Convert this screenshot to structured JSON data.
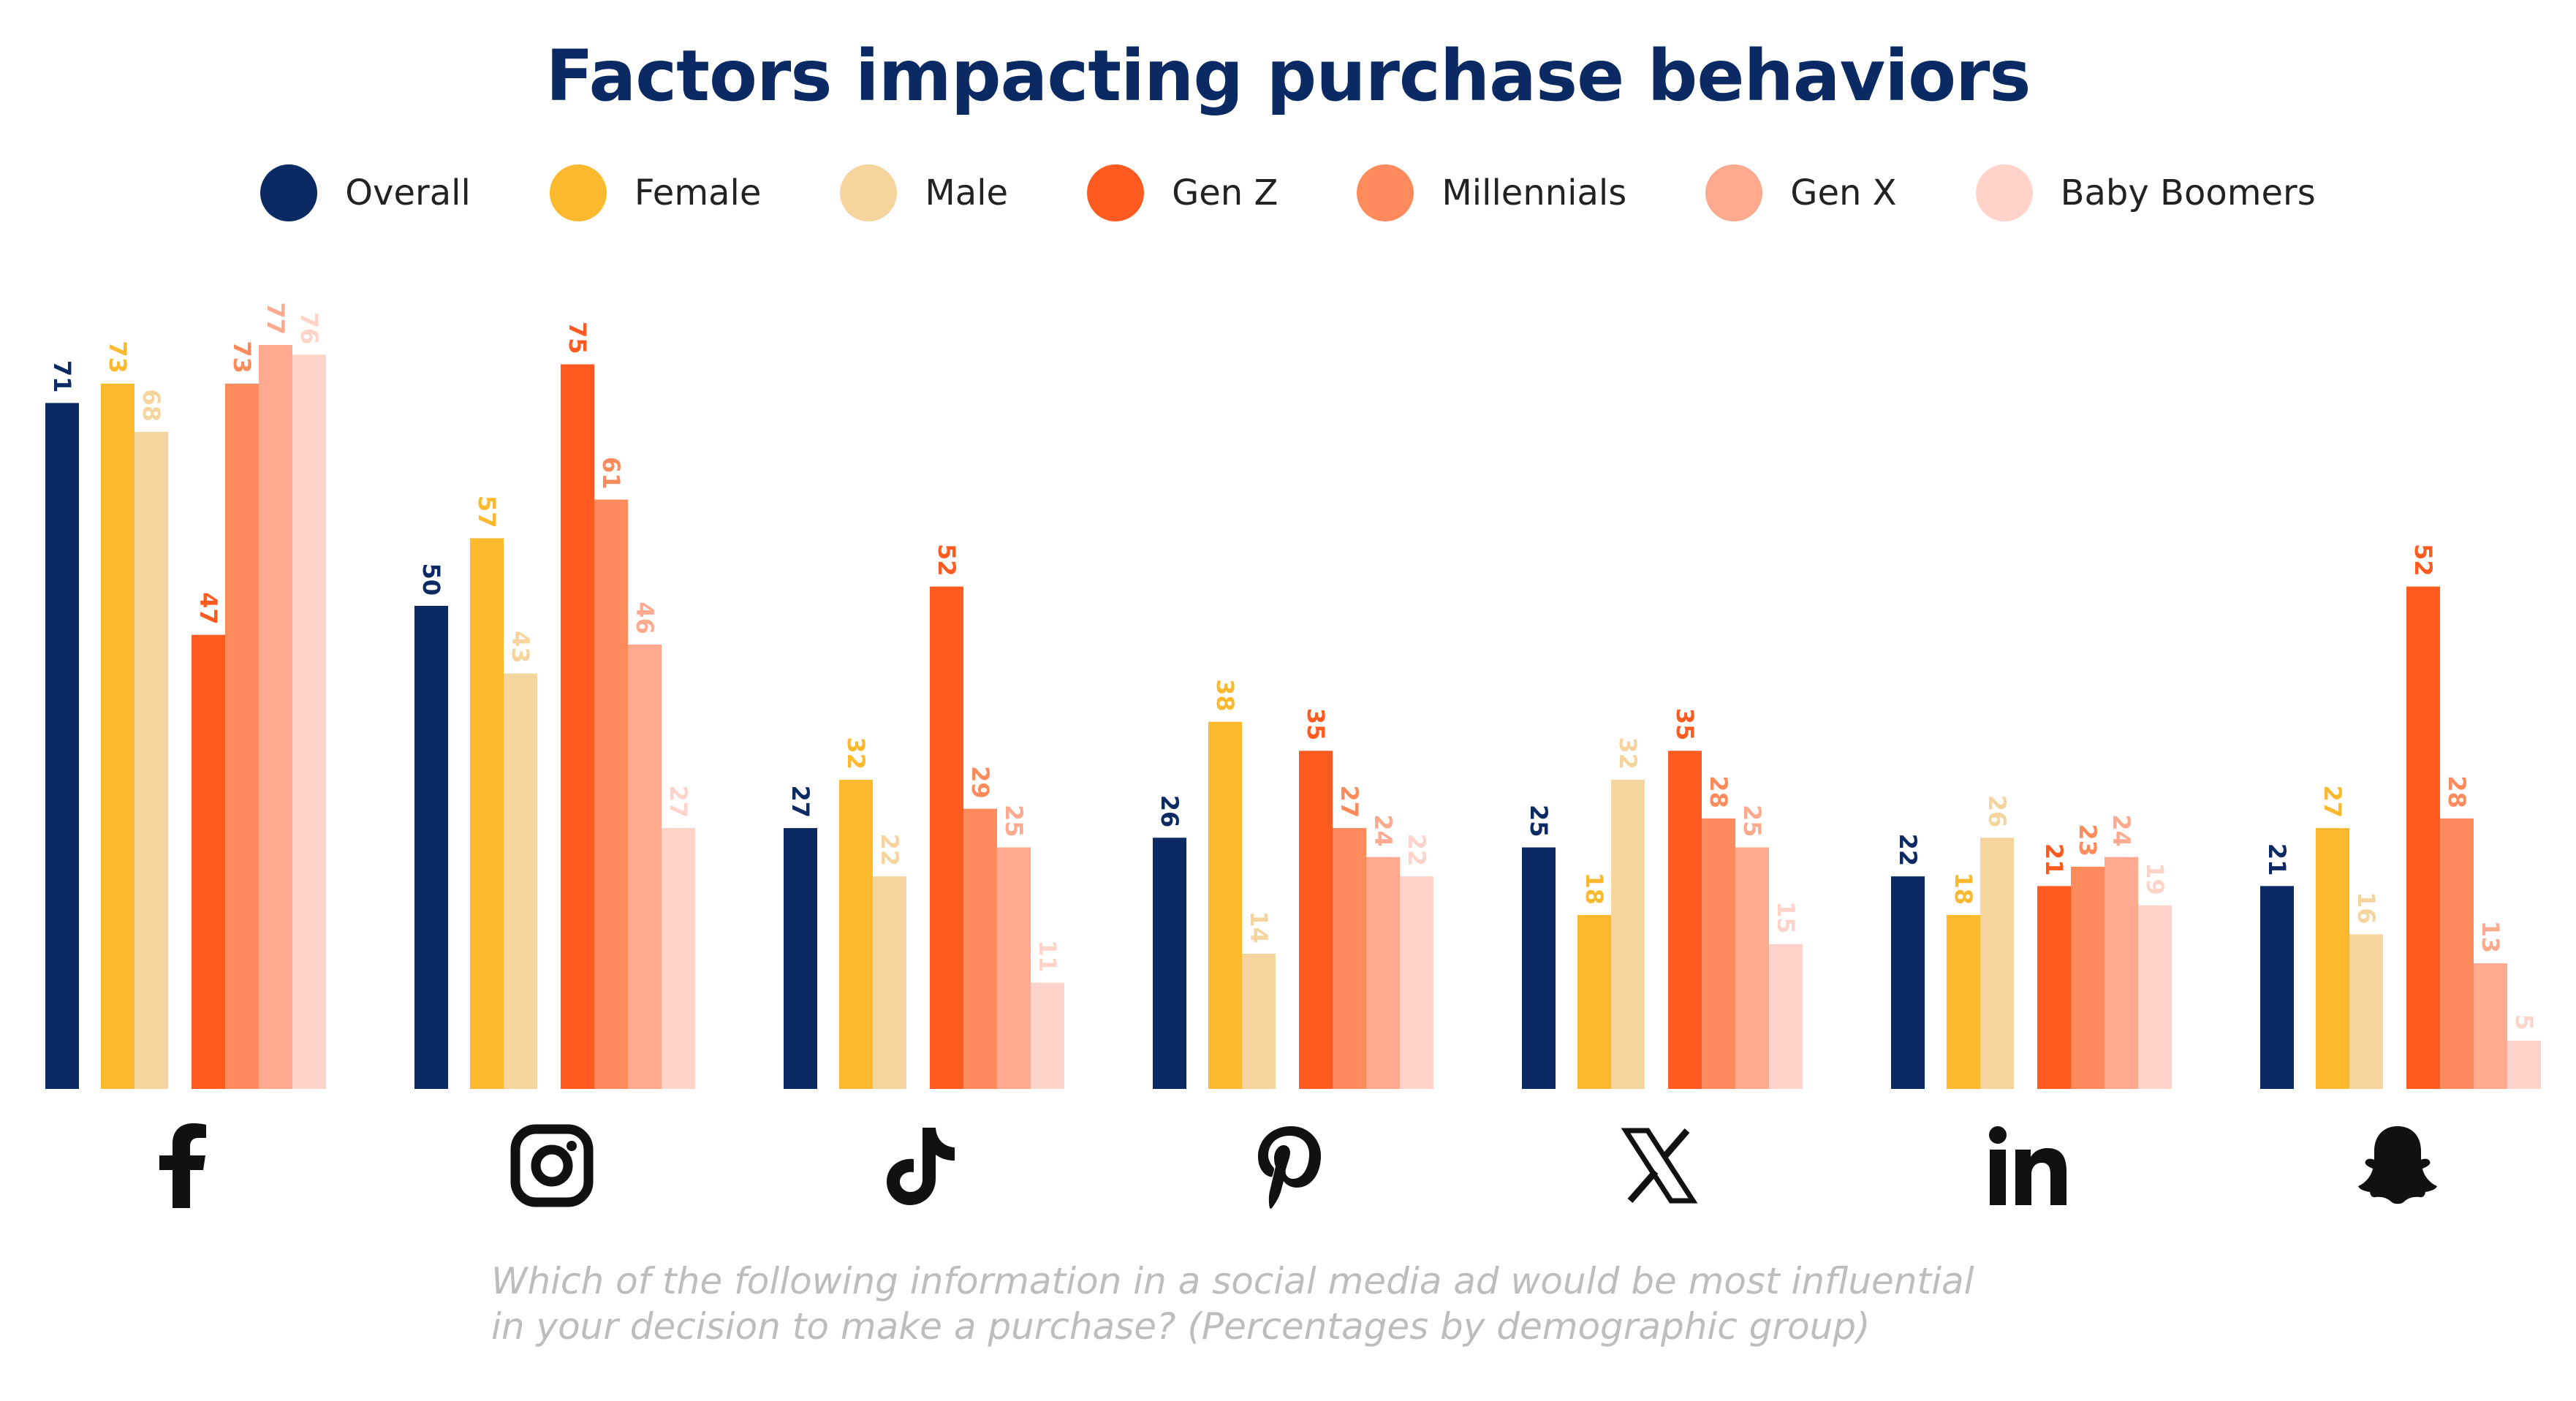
{
  "chart_data": {
    "type": "bar",
    "title": "Factors impacting purchase behaviors",
    "xlabel": "",
    "ylabel": "",
    "ylim": [
      0,
      80
    ],
    "grid": false,
    "legend_position": "top-center",
    "categories": [
      "Facebook",
      "Instagram",
      "TikTok",
      "Pinterest",
      "X",
      "LinkedIn",
      "Snapchat"
    ],
    "category_icons": [
      "facebook-icon",
      "instagram-icon",
      "tiktok-icon",
      "pinterest-icon",
      "x-icon",
      "linkedin-icon",
      "snapchat-icon"
    ],
    "series": [
      {
        "name": "Overall",
        "color": "#0B2A63",
        "values": [
          71,
          50,
          27,
          26,
          25,
          22,
          21
        ]
      },
      {
        "name": "Female",
        "color": "#FDB92E",
        "values": [
          73,
          57,
          32,
          38,
          18,
          18,
          27
        ]
      },
      {
        "name": "Male",
        "color": "#F6D49E",
        "values": [
          68,
          43,
          22,
          14,
          32,
          26,
          16
        ]
      },
      {
        "name": "Gen Z",
        "color": "#FF5A1F",
        "values": [
          47,
          75,
          52,
          35,
          35,
          21,
          52
        ]
      },
      {
        "name": "Millennials",
        "color": "#FF8A5B",
        "values": [
          73,
          61,
          29,
          27,
          28,
          23,
          28
        ]
      },
      {
        "name": "Gen X",
        "color": "#FFA98E",
        "values": [
          77,
          46,
          25,
          24,
          25,
          24,
          13
        ]
      },
      {
        "name": "Baby Boomers",
        "color": "#FFD3C9",
        "values": [
          76,
          27,
          11,
          22,
          15,
          19,
          5
        ]
      }
    ],
    "footnote": [
      "Which of the following information in a social media ad would be most influential",
      "in your decision to make a purchase? (Percentages by demographic group)"
    ]
  }
}
